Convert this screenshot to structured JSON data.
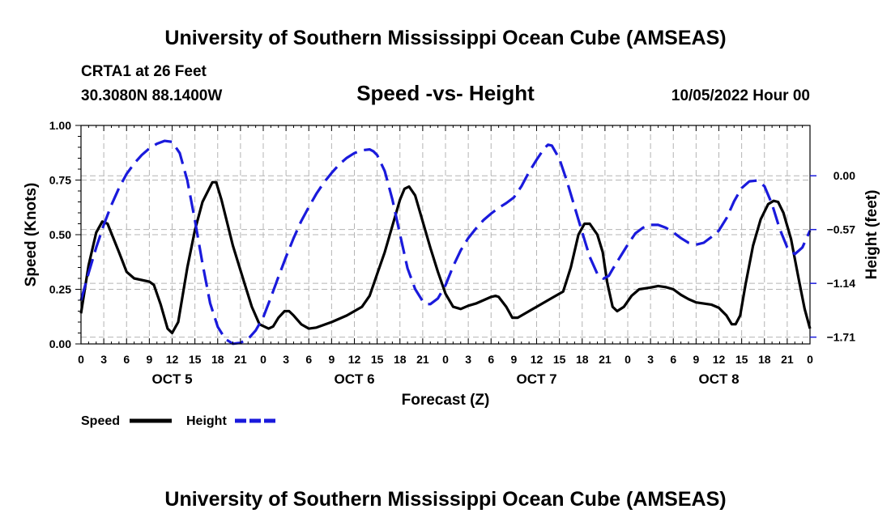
{
  "header": {
    "title_top": "University of Southern Mississippi Ocean Cube (AMSEAS)",
    "title_bottom": "University of Southern Mississippi Ocean Cube (AMSEAS)",
    "station": "CRTA1 at 26 Feet",
    "coords": "30.3080N  88.1400W",
    "date": "10/05/2022 Hour 00"
  },
  "chart_data": {
    "type": "line",
    "title": "Speed -vs- Height",
    "xlabel": "Forecast (Z)",
    "ylabel_left": "Speed (Knots)",
    "ylabel_right": "Height (feet)",
    "x_range_hours": [
      0,
      96
    ],
    "x_ticks": [
      0,
      3,
      6,
      9,
      12,
      15,
      18,
      21,
      24,
      27,
      30,
      33,
      36,
      39,
      42,
      45,
      48,
      51,
      54,
      57,
      60,
      63,
      66,
      69,
      72,
      75,
      78,
      81,
      84,
      87,
      90,
      93,
      96
    ],
    "x_tick_labels": [
      "0",
      "3",
      "6",
      "9",
      "12",
      "15",
      "18",
      "21",
      "0",
      "3",
      "6",
      "9",
      "12",
      "15",
      "18",
      "21",
      "0",
      "3",
      "6",
      "9",
      "12",
      "15",
      "18",
      "21",
      "0",
      "3",
      "6",
      "9",
      "12",
      "15",
      "18",
      "21",
      "0"
    ],
    "days": [
      {
        "label": "OCT 5",
        "center_hour": 12
      },
      {
        "label": "OCT 6",
        "center_hour": 36
      },
      {
        "label": "OCT 7",
        "center_hour": 60
      },
      {
        "label": "OCT 8",
        "center_hour": 84
      }
    ],
    "y_left": {
      "range": [
        0,
        1
      ],
      "ticks": [
        0,
        0.25,
        0.5,
        0.75,
        1.0
      ],
      "tick_labels": [
        "0.00",
        "0.25",
        "0.50",
        "0.75",
        "1.00"
      ]
    },
    "y_right": {
      "range": [
        -1.782,
        0.5337
      ],
      "ticks": [
        0,
        -0.57,
        -1.14,
        -1.71
      ],
      "tick_labels": [
        "0.00",
        "−0.57",
        "−1.14",
        "−1.71"
      ]
    },
    "grid": true,
    "series": [
      {
        "name": "Speed",
        "axis": "left",
        "color": "#000000",
        "dash": "solid",
        "points": [
          [
            0,
            0.14
          ],
          [
            1,
            0.36
          ],
          [
            2,
            0.51
          ],
          [
            2.8,
            0.56
          ],
          [
            3.5,
            0.55
          ],
          [
            5,
            0.42
          ],
          [
            6,
            0.33
          ],
          [
            7,
            0.3
          ],
          [
            9,
            0.285
          ],
          [
            9.6,
            0.27
          ],
          [
            10.5,
            0.18
          ],
          [
            11.4,
            0.07
          ],
          [
            12,
            0.05
          ],
          [
            12.8,
            0.1
          ],
          [
            14,
            0.35
          ],
          [
            15,
            0.52
          ],
          [
            16,
            0.65
          ],
          [
            17.3,
            0.74
          ],
          [
            17.8,
            0.74
          ],
          [
            18.5,
            0.66
          ],
          [
            20,
            0.45
          ],
          [
            21.5,
            0.28
          ],
          [
            22.5,
            0.17
          ],
          [
            23.5,
            0.09
          ],
          [
            24.7,
            0.07
          ],
          [
            25.3,
            0.08
          ],
          [
            26,
            0.12
          ],
          [
            26.8,
            0.15
          ],
          [
            27.4,
            0.15
          ],
          [
            28,
            0.13
          ],
          [
            29,
            0.09
          ],
          [
            30,
            0.07
          ],
          [
            31,
            0.075
          ],
          [
            33,
            0.1
          ],
          [
            35,
            0.13
          ],
          [
            37,
            0.17
          ],
          [
            38,
            0.22
          ],
          [
            39,
            0.32
          ],
          [
            40,
            0.42
          ],
          [
            41,
            0.54
          ],
          [
            42,
            0.66
          ],
          [
            42.6,
            0.71
          ],
          [
            43.2,
            0.72
          ],
          [
            44,
            0.68
          ],
          [
            45,
            0.56
          ],
          [
            46,
            0.44
          ],
          [
            47,
            0.33
          ],
          [
            48,
            0.23
          ],
          [
            49,
            0.17
          ],
          [
            50,
            0.16
          ],
          [
            51,
            0.175
          ],
          [
            52,
            0.185
          ],
          [
            53,
            0.2
          ],
          [
            54,
            0.215
          ],
          [
            54.6,
            0.22
          ],
          [
            55,
            0.215
          ],
          [
            56,
            0.17
          ],
          [
            56.8,
            0.12
          ],
          [
            57.5,
            0.12
          ],
          [
            58.5,
            0.14
          ],
          [
            60,
            0.17
          ],
          [
            62,
            0.21
          ],
          [
            63.5,
            0.24
          ],
          [
            64.5,
            0.35
          ],
          [
            65.5,
            0.5
          ],
          [
            66.3,
            0.55
          ],
          [
            67,
            0.55
          ],
          [
            68,
            0.5
          ],
          [
            68.7,
            0.42
          ],
          [
            69.3,
            0.28
          ],
          [
            70,
            0.17
          ],
          [
            70.6,
            0.15
          ],
          [
            71.5,
            0.17
          ],
          [
            72.5,
            0.22
          ],
          [
            73.5,
            0.25
          ],
          [
            75,
            0.258
          ],
          [
            76,
            0.265
          ],
          [
            77,
            0.26
          ],
          [
            78,
            0.25
          ],
          [
            79,
            0.225
          ],
          [
            80,
            0.205
          ],
          [
            81,
            0.19
          ],
          [
            82,
            0.185
          ],
          [
            83,
            0.18
          ],
          [
            84,
            0.165
          ],
          [
            85,
            0.13
          ],
          [
            85.7,
            0.09
          ],
          [
            86.2,
            0.09
          ],
          [
            86.8,
            0.13
          ],
          [
            87.5,
            0.27
          ],
          [
            88.5,
            0.45
          ],
          [
            89.5,
            0.57
          ],
          [
            90.5,
            0.64
          ],
          [
            91.2,
            0.655
          ],
          [
            91.8,
            0.65
          ],
          [
            92.5,
            0.6
          ],
          [
            93.5,
            0.48
          ],
          [
            94.5,
            0.3
          ],
          [
            95.3,
            0.16
          ],
          [
            96,
            0.07
          ]
        ]
      },
      {
        "name": "Height",
        "axis": "right",
        "color": "#1a1adc",
        "dash": "22,9",
        "points": [
          [
            0,
            -1.32
          ],
          [
            1,
            -1.03
          ],
          [
            2,
            -0.76
          ],
          [
            3,
            -0.52
          ],
          [
            4,
            -0.31
          ],
          [
            5,
            -0.13
          ],
          [
            6,
            0.02
          ],
          [
            7,
            0.13
          ],
          [
            8,
            0.22
          ],
          [
            9,
            0.29
          ],
          [
            10,
            0.34
          ],
          [
            11,
            0.37
          ],
          [
            12,
            0.36
          ],
          [
            13,
            0.24
          ],
          [
            14,
            -0.05
          ],
          [
            15,
            -0.47
          ],
          [
            16,
            -0.93
          ],
          [
            17,
            -1.35
          ],
          [
            18,
            -1.6
          ],
          [
            19,
            -1.73
          ],
          [
            20,
            -1.78
          ],
          [
            21,
            -1.77
          ],
          [
            22,
            -1.73
          ],
          [
            23,
            -1.64
          ],
          [
            24,
            -1.5
          ],
          [
            25,
            -1.29
          ],
          [
            26,
            -1.07
          ],
          [
            27,
            -0.86
          ],
          [
            28,
            -0.66
          ],
          [
            29,
            -0.48
          ],
          [
            30,
            -0.33
          ],
          [
            31,
            -0.19
          ],
          [
            32,
            -0.07
          ],
          [
            33,
            0.03
          ],
          [
            34,
            0.12
          ],
          [
            35,
            0.19
          ],
          [
            36,
            0.24
          ],
          [
            37,
            0.27
          ],
          [
            38,
            0.28
          ],
          [
            38.5,
            0.26
          ],
          [
            39,
            0.22
          ],
          [
            40,
            0.05
          ],
          [
            41,
            -0.25
          ],
          [
            42,
            -0.62
          ],
          [
            43,
            -0.98
          ],
          [
            44,
            -1.2
          ],
          [
            45,
            -1.33
          ],
          [
            45.5,
            -1.36
          ],
          [
            46,
            -1.36
          ],
          [
            47,
            -1.3
          ],
          [
            48,
            -1.16
          ],
          [
            49,
            -0.96
          ],
          [
            50,
            -0.79
          ],
          [
            51,
            -0.66
          ],
          [
            52,
            -0.56
          ],
          [
            53,
            -0.47
          ],
          [
            54,
            -0.4
          ],
          [
            55,
            -0.34
          ],
          [
            56,
            -0.29
          ],
          [
            57,
            -0.23
          ],
          [
            58,
            -0.11
          ],
          [
            59,
            0.04
          ],
          [
            60,
            0.17
          ],
          [
            61,
            0.29
          ],
          [
            61.5,
            0.33
          ],
          [
            62,
            0.32
          ],
          [
            63,
            0.18
          ],
          [
            64,
            -0.06
          ],
          [
            65,
            -0.33
          ],
          [
            66,
            -0.6
          ],
          [
            67,
            -0.86
          ],
          [
            68,
            -1.04
          ],
          [
            68.8,
            -1.09
          ],
          [
            69.5,
            -1.06
          ],
          [
            70,
            -0.99
          ],
          [
            71,
            -0.86
          ],
          [
            72,
            -0.73
          ],
          [
            73,
            -0.61
          ],
          [
            74,
            -0.55
          ],
          [
            75,
            -0.52
          ],
          [
            76,
            -0.52
          ],
          [
            77,
            -0.55
          ],
          [
            78,
            -0.6
          ],
          [
            79,
            -0.66
          ],
          [
            80,
            -0.71
          ],
          [
            81,
            -0.73
          ],
          [
            82,
            -0.71
          ],
          [
            83,
            -0.65
          ],
          [
            84,
            -0.58
          ],
          [
            85,
            -0.45
          ],
          [
            86,
            -0.27
          ],
          [
            87,
            -0.13
          ],
          [
            88,
            -0.06
          ],
          [
            89,
            -0.05
          ],
          [
            90,
            -0.11
          ],
          [
            91,
            -0.3
          ],
          [
            92,
            -0.56
          ],
          [
            93,
            -0.76
          ],
          [
            94,
            -0.83
          ],
          [
            95,
            -0.76
          ],
          [
            96,
            -0.58
          ]
        ]
      }
    ],
    "legend": {
      "placement": "bottom-left",
      "items": [
        "Speed",
        "Height"
      ]
    }
  }
}
